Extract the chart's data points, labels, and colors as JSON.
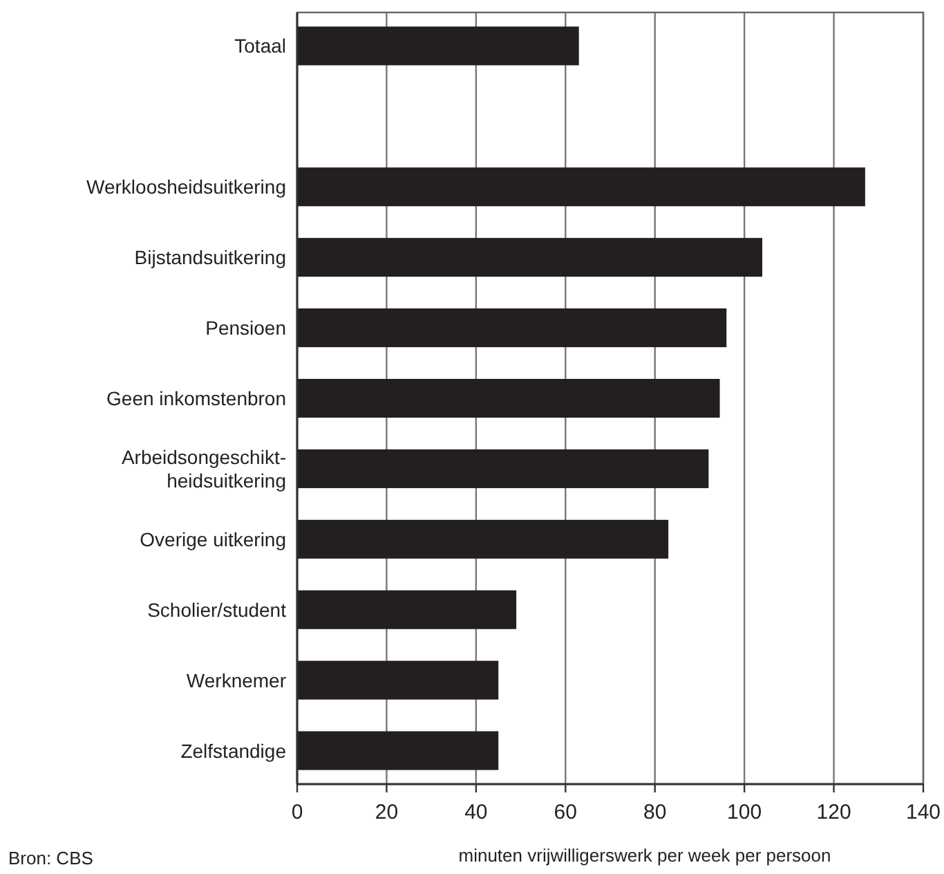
{
  "chart_data": {
    "type": "bar",
    "orientation": "horizontal",
    "categories": [
      "Totaal",
      null,
      "Werkloosheidsuitkering",
      "Bijstandsuitkering",
      "Pensioen",
      "Geen inkomstenbron",
      "Arbeidsongeschikt-\nheidsuitkering",
      "Overige uitkering",
      "Scholier/student",
      "Werknemer",
      "Zelfstandige"
    ],
    "values": [
      63,
      null,
      127,
      104,
      96,
      94.5,
      92,
      83,
      49,
      45,
      45
    ],
    "color": "#231f20",
    "xlim": [
      0,
      140
    ],
    "xticks": [
      0,
      20,
      40,
      60,
      80,
      100,
      120,
      140
    ],
    "xlabel": "minuten vrijwilligerswerk per week per persoon",
    "annotations": [
      "Bron: CBS"
    ],
    "grid": "x"
  }
}
